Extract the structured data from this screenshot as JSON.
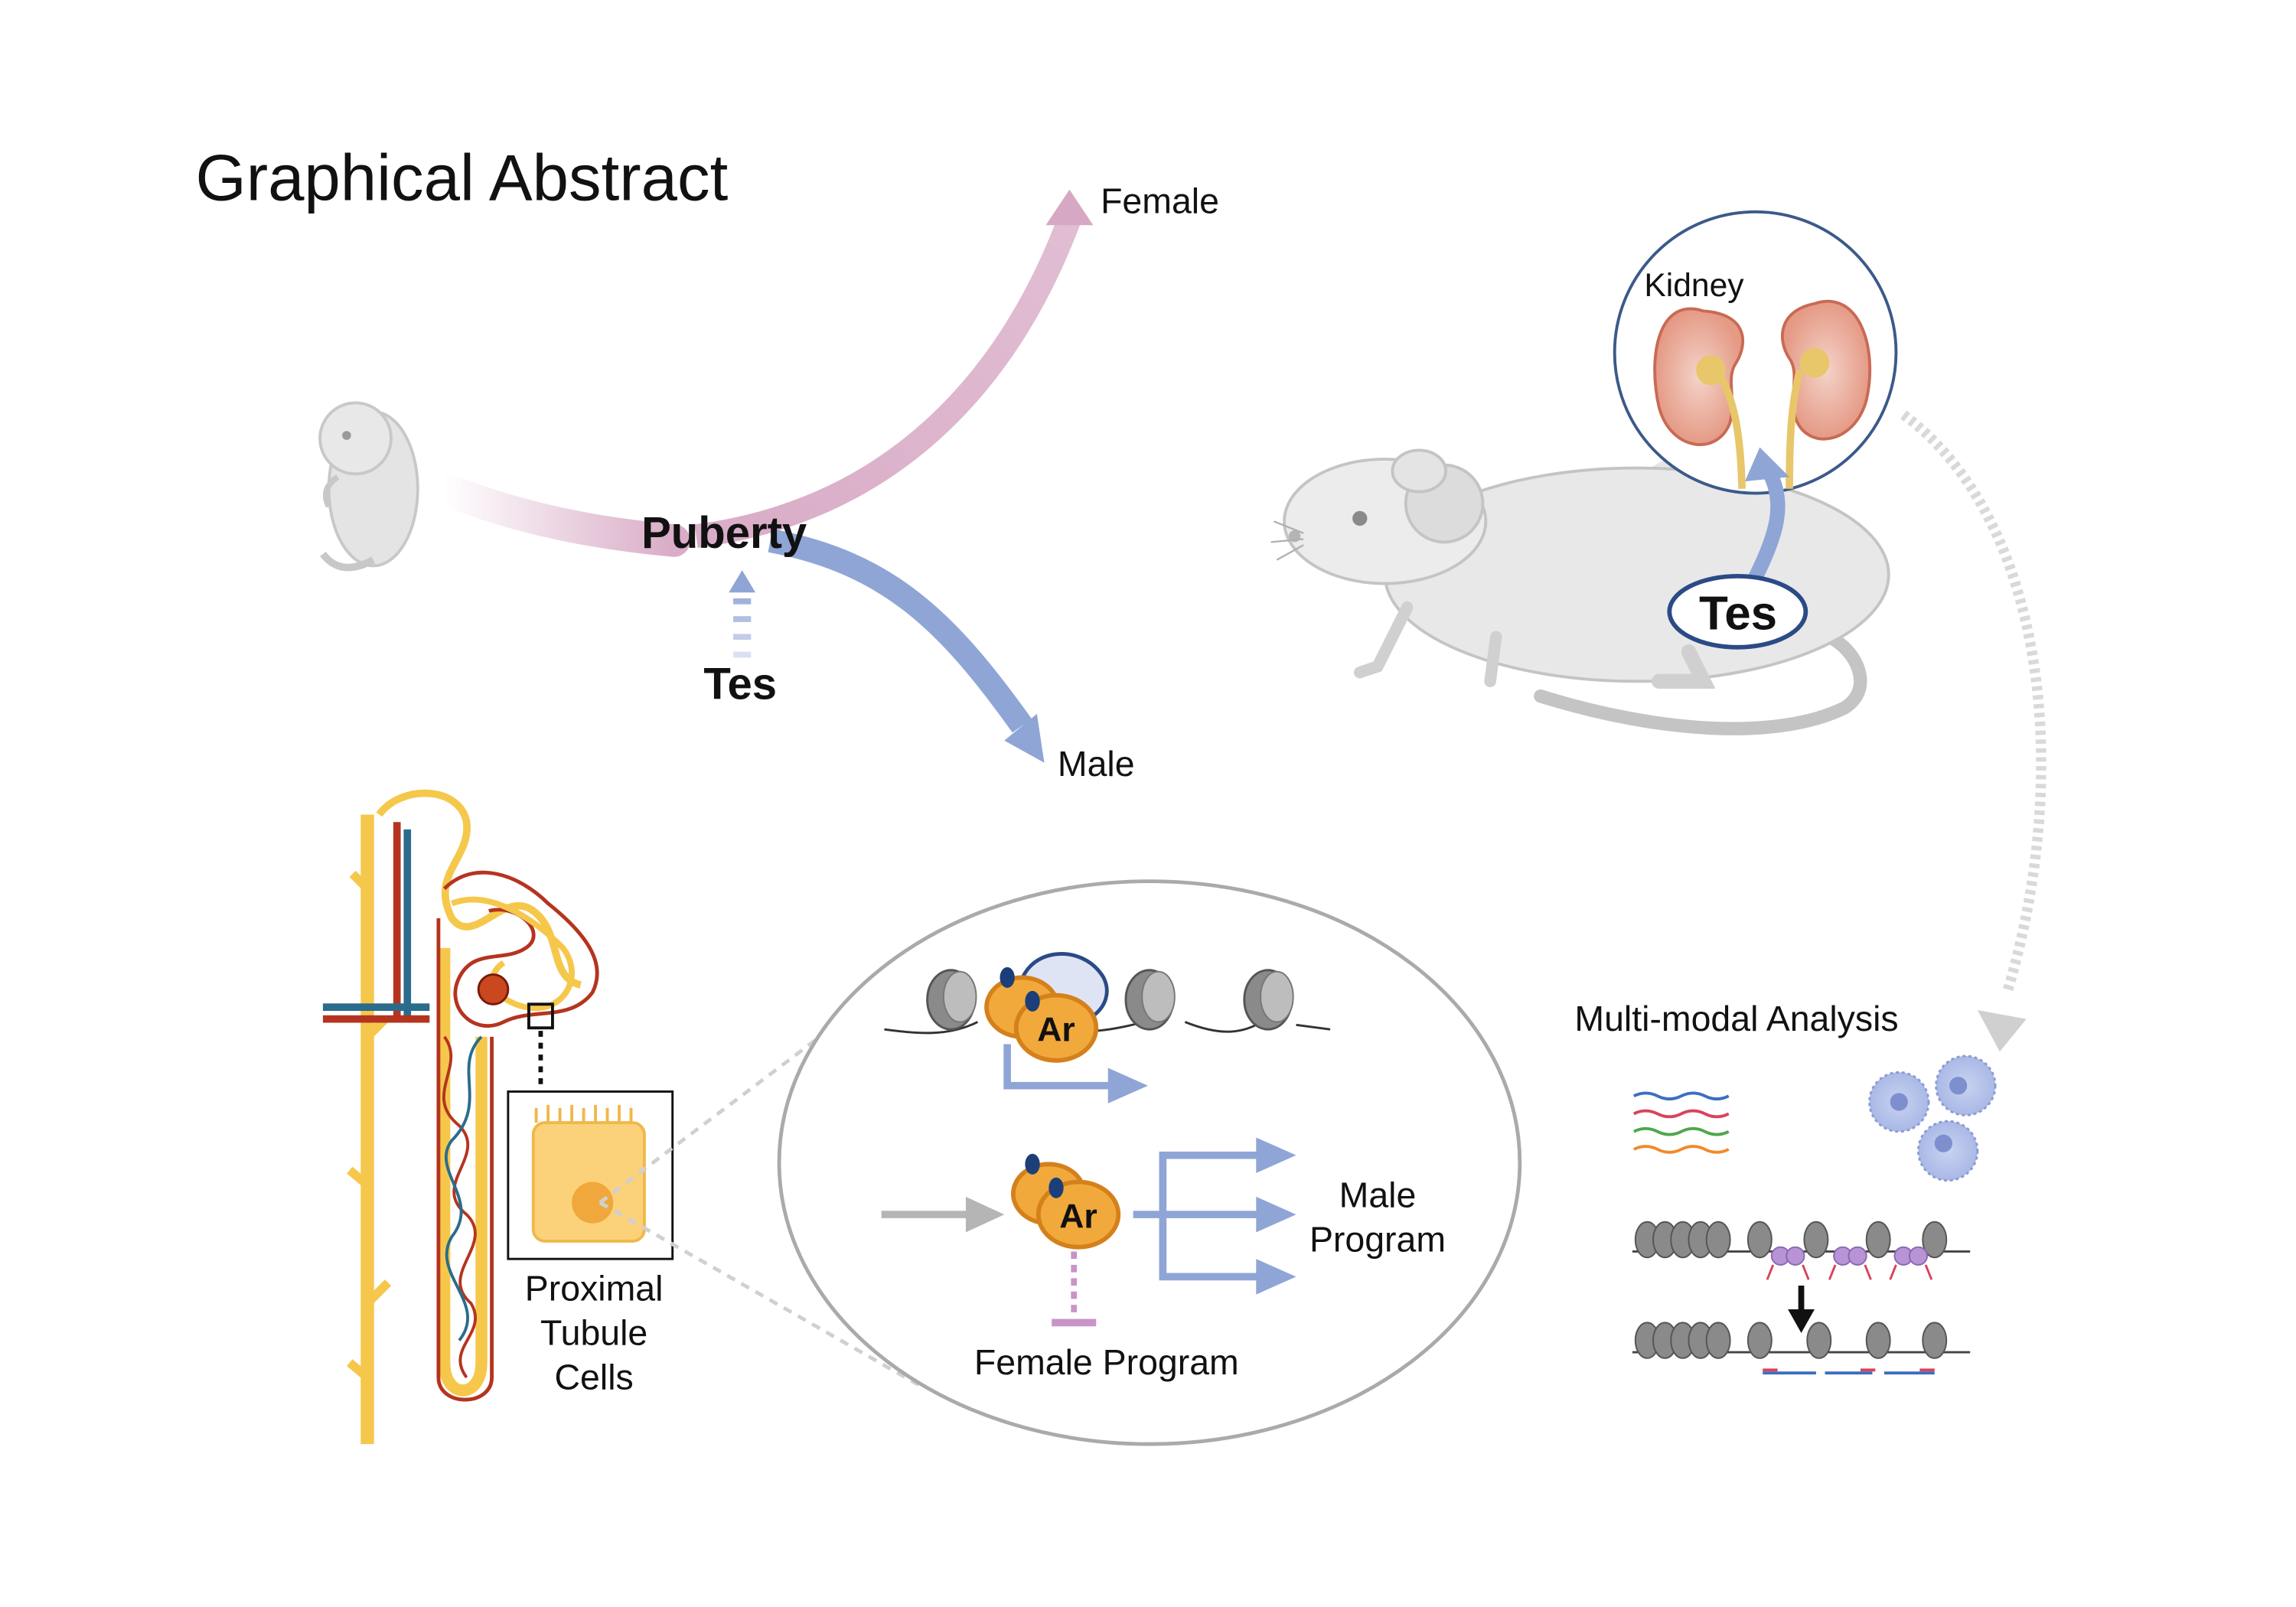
{
  "title": "Graphical Abstract",
  "trajectory": {
    "branch_point_label": "Puberty",
    "upper_branch_label": "Female",
    "lower_branch_label": "Male",
    "driver_label": "Tes"
  },
  "mouse_panel": {
    "organ_label": "Kidney",
    "hormone_label": "Tes"
  },
  "nephron_panel": {
    "cell_label_line1": "Proximal",
    "cell_label_line2": "Tubule",
    "cell_label_line3": "Cells"
  },
  "mechanism_panel": {
    "factor_label_top": "Ar",
    "factor_label_bottom": "Ar",
    "activated_label_line1": "Male",
    "activated_label_line2": "Program",
    "repressed_label": "Female Program"
  },
  "analysis_panel": {
    "title": "Multi-modal Analysis"
  },
  "colors": {
    "female": "#d7a8c4",
    "male": "#8fa5d6",
    "receptor_fill": "#f2a93b",
    "receptor_stroke": "#d4811c",
    "tubule_yellow": "#f5c84c",
    "vessel_red": "#b5341f",
    "vessel_blue": "#2b6c8c",
    "repression": "#c895c8",
    "outline_grey": "#9a9a9a"
  },
  "icons": [
    "mouse-pup-icon",
    "adult-mouse-icon",
    "kidney-icon",
    "nephron-icon",
    "cell-icon",
    "nucleosome-icon",
    "rna-icon",
    "single-cell-icon"
  ]
}
